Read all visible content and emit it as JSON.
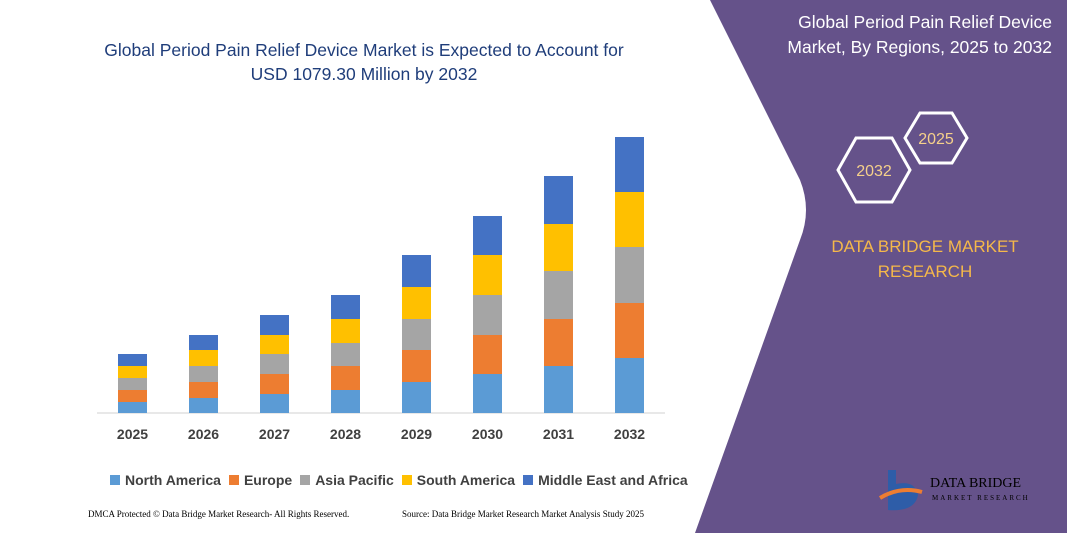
{
  "chart_data": {
    "type": "bar",
    "stacked": true,
    "title": "Global Period Pain Relief Device Market is Expected to Account for USD 1079.30 Million by 2032",
    "categories": [
      "2025",
      "2026",
      "2027",
      "2028",
      "2029",
      "2030",
      "2031",
      "2032"
    ],
    "series": [
      {
        "name": "North America",
        "color": "#5b9bd5",
        "values": [
          11,
          15,
          19,
          23,
          31,
          39,
          47,
          55
        ]
      },
      {
        "name": "Europe",
        "color": "#ed7d31",
        "values": [
          12,
          16,
          20,
          24,
          32,
          39,
          47,
          55
        ]
      },
      {
        "name": "Asia Pacific",
        "color": "#a5a5a5",
        "values": [
          12,
          16,
          20,
          23,
          31,
          40,
          48,
          56
        ]
      },
      {
        "name": "South America",
        "color": "#ffc000",
        "values": [
          12,
          16,
          19,
          24,
          32,
          40,
          47,
          55
        ]
      },
      {
        "name": "Middle East and Africa",
        "color": "#4472c4",
        "values": [
          12,
          15,
          20,
          24,
          32,
          39,
          48,
          55
        ]
      }
    ],
    "ylim": [
      0,
      280
    ]
  },
  "panel": {
    "title": "Global Period Pain Relief Device Market, By Regions, 2025 to 2032",
    "badges": [
      "2025",
      "2032"
    ],
    "brand": "DATA BRIDGE MARKET RESEARCH",
    "logo": {
      "name": "DATA BRIDGE",
      "tagline": "MARKET RESEARCH"
    }
  },
  "footer": {
    "rights": "DMCA Protected © Data Bridge Market Research- All Rights Reserved.",
    "source": "Source: Data Bridge Market Research Market Analysis Study 2025"
  }
}
